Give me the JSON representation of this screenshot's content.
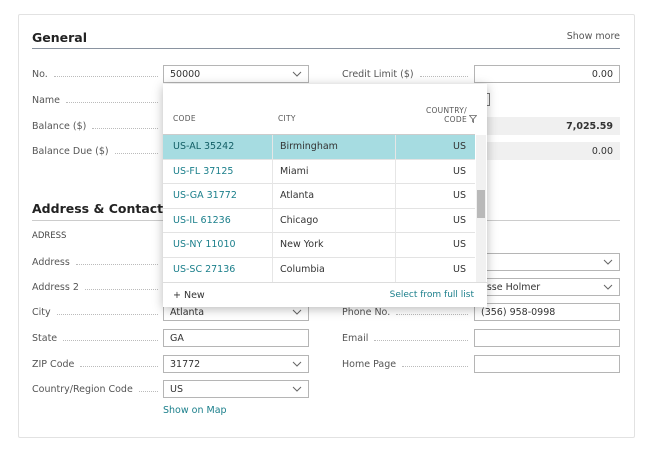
{
  "general": {
    "title": "General",
    "show_more": "Show more",
    "left_fields": [
      {
        "label": "No.",
        "value": "50000"
      },
      {
        "label": "Name"
      },
      {
        "label": "Balance ($)"
      },
      {
        "label": "Balance Due ($)"
      }
    ],
    "right_fields": [
      {
        "label": "Credit Limit ($)",
        "value": "0.00"
      },
      {
        "value": "7,025.59"
      },
      {
        "value": "0.00"
      }
    ]
  },
  "address_contact": {
    "title": "Address & Contact",
    "group": "ADRESS",
    "left_fields": [
      {
        "label": "Address"
      },
      {
        "label": "Address 2"
      },
      {
        "label": "City",
        "value": "Atlanta"
      },
      {
        "label": "State",
        "value": "GA"
      },
      {
        "label": "ZIP Code",
        "value": "31772"
      },
      {
        "label": "Country/Region Code",
        "value": "US"
      }
    ],
    "show_on_map": "Show on Map",
    "right_fields": [
      {
        "value": "esse Holmer"
      },
      {
        "label": "Phone No.",
        "value": "(356) 958-0998"
      },
      {
        "label": "Email"
      },
      {
        "label": "Home Page"
      }
    ]
  },
  "lookup": {
    "headers": {
      "code": "CODE",
      "city": "CITY",
      "country_line1": "COUNTRY/",
      "country_line2": "CODE"
    },
    "rows": [
      [
        "US-AL 35242",
        "Birmingham",
        "US"
      ],
      [
        "US-FL 37125",
        "Miami",
        "US"
      ],
      [
        "US-GA 31772",
        "Atlanta",
        "US"
      ],
      [
        "US-IL 61236",
        "Chicago",
        "US"
      ],
      [
        "US-NY 11010",
        "New York",
        "US"
      ],
      [
        "US-SC 27136",
        "Columbia",
        "US"
      ]
    ],
    "new": "+ New",
    "full_list": "Select from full list"
  }
}
